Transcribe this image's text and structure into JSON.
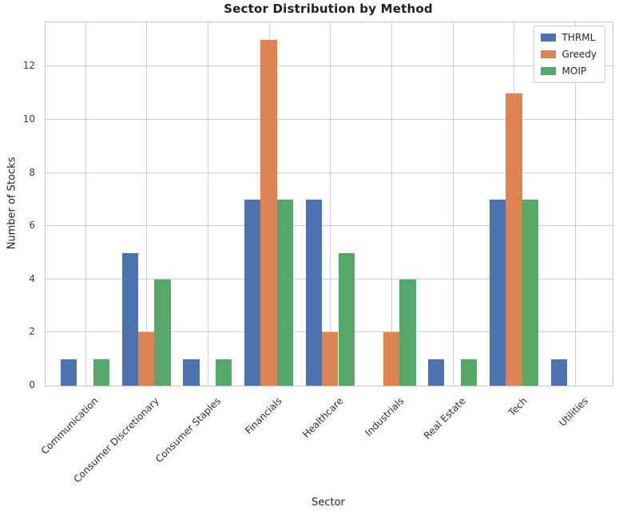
{
  "title": "Sector Distribution by Method",
  "chart_data": {
    "type": "bar",
    "title": "Sector Distribution by Method",
    "xlabel": "Sector",
    "ylabel": "Number of Stocks",
    "categories": [
      "Communication",
      "Consumer Discretionary",
      "Consumer Staples",
      "Financials",
      "Healthcare",
      "Industrials",
      "Real Estate",
      "Tech",
      "Utilities"
    ],
    "series": [
      {
        "name": "THRML",
        "color": "#4C72B0",
        "values": [
          1,
          5,
          1,
          7,
          7,
          0,
          1,
          7,
          1
        ]
      },
      {
        "name": "Greedy",
        "color": "#DD8452",
        "values": [
          0,
          2,
          0,
          13,
          2,
          2,
          0,
          11,
          0
        ]
      },
      {
        "name": "MOIP",
        "color": "#55A868",
        "values": [
          1,
          4,
          1,
          7,
          5,
          4,
          1,
          7,
          0
        ]
      }
    ],
    "yticks": [
      0,
      2,
      4,
      6,
      8,
      10,
      12
    ],
    "ylim": [
      0,
      13.66
    ],
    "grid": true,
    "legend_position": "upper right"
  },
  "colors": {
    "grid": "#cfcfcf",
    "spine": "#c9c9c9",
    "background": "#ffffff",
    "text": "#262626"
  }
}
